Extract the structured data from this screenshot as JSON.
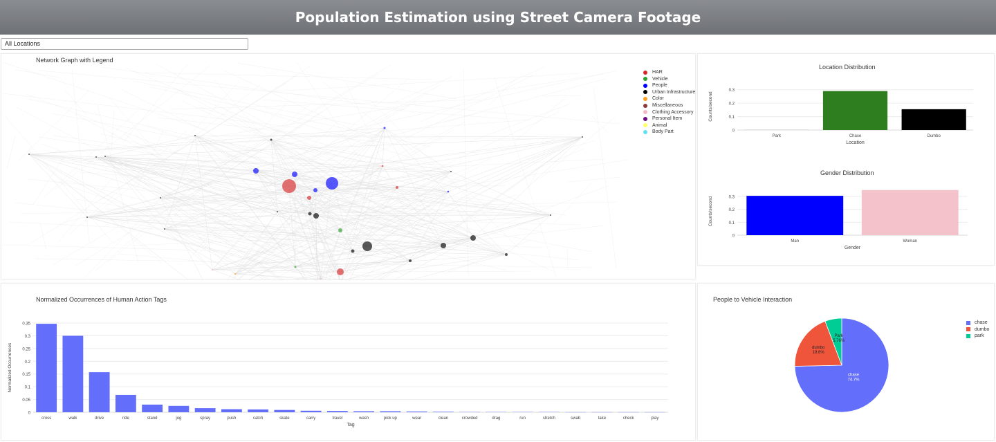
{
  "header": {
    "title": "Population Estimation using Street Camera Footage"
  },
  "location_select": {
    "value": "All Locations"
  },
  "network": {
    "title": "Network Graph with Legend",
    "legend": [
      {
        "label": "HAR",
        "color": "#d62728"
      },
      {
        "label": "Vehicle",
        "color": "#2ca02c"
      },
      {
        "label": "People",
        "color": "#0000ff"
      },
      {
        "label": "Urban Infrastructure",
        "color": "#000000"
      },
      {
        "label": "Color",
        "color": "#ff9f1c"
      },
      {
        "label": "Miscellaneous",
        "color": "#8b3a3a"
      },
      {
        "label": "Clothing Accessory",
        "color": "#f4b8c2"
      },
      {
        "label": "Personal Item",
        "color": "#6a0d83"
      },
      {
        "label": "Animal",
        "color": "#ffff66"
      },
      {
        "label": "Body Part",
        "color": "#66e0f0"
      }
    ]
  },
  "chart_data": [
    {
      "type": "bar",
      "title": "Location Distribution",
      "xlabel": "Location",
      "ylabel": "Counts/second",
      "categories": [
        "Park",
        "Chase",
        "Dumbo"
      ],
      "values": [
        0.002,
        0.29,
        0.155
      ],
      "colors": [
        "#bbbbbb",
        "#2e7d1e",
        "#000000"
      ],
      "ylim": [
        0,
        0.35
      ],
      "yticks": [
        0,
        0.1,
        0.2,
        0.3
      ],
      "ytick_labels": [
        "0",
        "0.1",
        "0.2",
        "0.3"
      ]
    },
    {
      "type": "bar",
      "title": "Gender Distribution",
      "xlabel": "Gender",
      "ylabel": "Counts/second",
      "categories": [
        "Man",
        "Woman"
      ],
      "values": [
        0.305,
        0.35
      ],
      "colors": [
        "#0000ff",
        "#f4c2cb"
      ],
      "ylim": [
        0,
        0.37
      ],
      "yticks": [
        0,
        0.1,
        0.2,
        0.3
      ],
      "ytick_labels": [
        "0",
        "0.1",
        "0.2",
        "0.3"
      ]
    },
    {
      "type": "bar",
      "title": "Normalized Occurrences of Human Action Tags",
      "xlabel": "Tag",
      "ylabel": "Normalized Occurrences",
      "categories": [
        "cross",
        "walk",
        "drive",
        "ride",
        "stand",
        "jog",
        "spray",
        "push",
        "catch",
        "skate",
        "carry",
        "travel",
        "wash",
        "pick up",
        "wear",
        "clean",
        "crowded",
        "drag",
        "run",
        "stretch",
        "swab",
        "take",
        "check",
        "play"
      ],
      "values": [
        0.347,
        0.3,
        0.157,
        0.068,
        0.03,
        0.025,
        0.016,
        0.012,
        0.011,
        0.009,
        0.006,
        0.005,
        0.004,
        0.004,
        0.003,
        0.002,
        0.001,
        0.001,
        0.001,
        0.001,
        0.0005,
        0.0005,
        0.0005,
        0.0005
      ],
      "color": "#636efa",
      "ylim": [
        0,
        0.35
      ],
      "yticks": [
        0,
        0.05,
        0.1,
        0.15,
        0.2,
        0.25,
        0.3,
        0.35
      ],
      "ytick_labels": [
        "0",
        "0.05",
        "0.1",
        "0.15",
        "0.2",
        "0.25",
        "0.3",
        "0.35"
      ]
    },
    {
      "type": "pie",
      "title": "People to Vehicle Interaction",
      "labels": [
        "chase",
        "dumbo",
        "park"
      ],
      "values": [
        74.7,
        19.6,
        5.76
      ],
      "slice_labels": [
        "chase\n74.7%",
        "dumbo\n19.6%",
        "Park\n5.76%"
      ],
      "colors": [
        "#636efa",
        "#ef553b",
        "#00cc96"
      ],
      "legend": [
        "chase",
        "dumbo",
        "park"
      ]
    }
  ]
}
